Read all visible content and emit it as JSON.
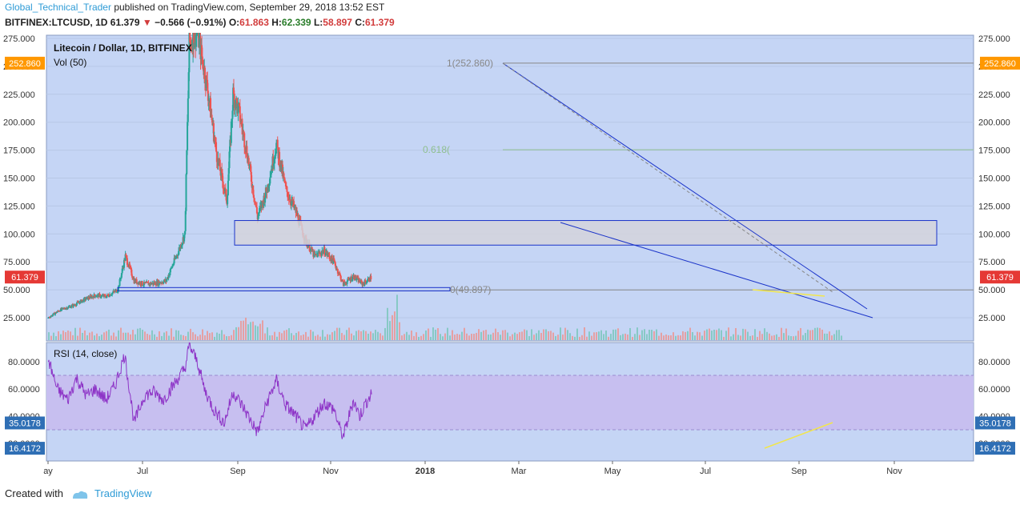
{
  "header": {
    "author": "Global_Technical_Trader",
    "published": "published on TradingView.com, September 29, 2018 13:52 EST",
    "symbol": "BITFINEX:LTCUSD, 1D",
    "last": "61.379",
    "arrow": "▼",
    "change": "−0.566 (−0.91%)",
    "o_label": "O:",
    "o_value": "61.863",
    "h_label": "H:",
    "h_value": "62.339",
    "l_label": "L:",
    "l_value": "58.897",
    "c_label": "C:",
    "c_value": "61.379"
  },
  "footer": {
    "created_with": "Created with",
    "brand": "TradingView"
  },
  "colors": {
    "bull": "#26a69a",
    "bear": "#ef5350",
    "pane_bg": "#c5d5f5",
    "rsi_band": "#c7bff0",
    "rsi_line": "#8e35c7",
    "trend": "#1a33c9",
    "label_orange": "#ff9800",
    "label_red": "#e53935",
    "label_blue": "#2f6fb5"
  },
  "chart_data": [
    {
      "type": "candlestick",
      "title": "Litecoin / Dollar, 1D, BITFINEX",
      "subtitle": "Vol (50)",
      "ylim": [
        0,
        280
      ],
      "yticks": [
        "275.000",
        "250.000",
        "225.000",
        "200.000",
        "175.000",
        "150.000",
        "125.000",
        "100.000",
        "75.000",
        "50.000",
        "25.000"
      ],
      "price_labels": {
        "high": "252.860",
        "last": "61.379"
      },
      "fib_levels": [
        {
          "label": "1(252.860)",
          "value": 252.86
        },
        {
          "label": "0.618(",
          "value": 175.33
        },
        {
          "label": "0(49.897)",
          "value": 49.897
        }
      ],
      "resistance_zone": [
        90,
        112
      ],
      "support_zone": [
        49,
        52
      ],
      "monthly_closes": [
        {
          "date": "2017-05-01",
          "close": 25
        },
        {
          "date": "2017-05-20",
          "close": 32
        },
        {
          "date": "2017-06-10",
          "close": 36
        },
        {
          "date": "2017-06-30",
          "close": 42
        },
        {
          "date": "2017-07-15",
          "close": 45
        },
        {
          "date": "2017-08-01",
          "close": 44
        },
        {
          "date": "2017-08-20",
          "close": 50
        },
        {
          "date": "2017-09-01",
          "close": 80
        },
        {
          "date": "2017-09-15",
          "close": 58
        },
        {
          "date": "2017-10-01",
          "close": 55
        },
        {
          "date": "2017-10-20",
          "close": 56
        },
        {
          "date": "2017-11-05",
          "close": 58
        },
        {
          "date": "2017-11-25",
          "close": 85
        },
        {
          "date": "2017-12-05",
          "close": 100
        },
        {
          "date": "2017-12-12",
          "close": 270
        },
        {
          "date": "2017-12-25",
          "close": 280
        },
        {
          "date": "2018-01-10",
          "close": 230
        },
        {
          "date": "2018-01-25",
          "close": 170
        },
        {
          "date": "2018-02-10",
          "close": 130
        },
        {
          "date": "2018-02-20",
          "close": 225
        },
        {
          "date": "2018-03-01",
          "close": 210
        },
        {
          "date": "2018-03-15",
          "close": 170
        },
        {
          "date": "2018-03-31",
          "close": 115
        },
        {
          "date": "2018-04-15",
          "close": 140
        },
        {
          "date": "2018-04-30",
          "close": 180
        },
        {
          "date": "2018-05-15",
          "close": 140
        },
        {
          "date": "2018-05-31",
          "close": 120
        },
        {
          "date": "2018-06-15",
          "close": 95
        },
        {
          "date": "2018-06-30",
          "close": 80
        },
        {
          "date": "2018-07-15",
          "close": 85
        },
        {
          "date": "2018-07-31",
          "close": 75
        },
        {
          "date": "2018-08-15",
          "close": 55
        },
        {
          "date": "2018-08-31",
          "close": 62
        },
        {
          "date": "2018-09-15",
          "close": 55
        },
        {
          "date": "2018-09-29",
          "close": 61.379
        }
      ]
    },
    {
      "type": "line",
      "title": "RSI (14, close)",
      "ylim": [
        10,
        95
      ],
      "yticks": [
        "80.0000",
        "60.0000",
        "40.0000",
        "20.0000"
      ],
      "band": [
        30,
        70
      ],
      "value_labels": [
        "35.0178",
        "16.4172"
      ],
      "x_axis": [
        "ay",
        "Jul",
        "Sep",
        "Nov",
        "2018",
        "Mar",
        "May",
        "Jul",
        "Sep",
        "Nov"
      ],
      "series": [
        {
          "values": [
            {
              "date": "2017-05-01",
              "rsi": 82
            },
            {
              "date": "2017-05-15",
              "rsi": 60
            },
            {
              "date": "2017-06-01",
              "rsi": 52
            },
            {
              "date": "2017-06-15",
              "rsi": 68
            },
            {
              "date": "2017-07-01",
              "rsi": 55
            },
            {
              "date": "2017-07-15",
              "rsi": 60
            },
            {
              "date": "2017-08-01",
              "rsi": 52
            },
            {
              "date": "2017-08-15",
              "rsi": 62
            },
            {
              "date": "2017-08-31",
              "rsi": 85
            },
            {
              "date": "2017-09-15",
              "rsi": 35
            },
            {
              "date": "2017-10-01",
              "rsi": 55
            },
            {
              "date": "2017-10-15",
              "rsi": 58
            },
            {
              "date": "2017-11-01",
              "rsi": 52
            },
            {
              "date": "2017-11-20",
              "rsi": 65
            },
            {
              "date": "2017-12-05",
              "rsi": 75
            },
            {
              "date": "2017-12-12",
              "rsi": 92
            },
            {
              "date": "2017-12-25",
              "rsi": 80
            },
            {
              "date": "2018-01-05",
              "rsi": 60
            },
            {
              "date": "2018-01-20",
              "rsi": 45
            },
            {
              "date": "2018-02-06",
              "rsi": 35
            },
            {
              "date": "2018-02-20",
              "rsi": 58
            },
            {
              "date": "2018-03-10",
              "rsi": 45
            },
            {
              "date": "2018-03-31",
              "rsi": 28
            },
            {
              "date": "2018-04-15",
              "rsi": 50
            },
            {
              "date": "2018-04-30",
              "rsi": 66
            },
            {
              "date": "2018-05-15",
              "rsi": 48
            },
            {
              "date": "2018-05-31",
              "rsi": 40
            },
            {
              "date": "2018-06-15",
              "rsi": 30
            },
            {
              "date": "2018-06-30",
              "rsi": 40
            },
            {
              "date": "2018-07-15",
              "rsi": 50
            },
            {
              "date": "2018-07-31",
              "rsi": 45
            },
            {
              "date": "2018-08-10",
              "rsi": 30
            },
            {
              "date": "2018-08-15",
              "rsi": 25
            },
            {
              "date": "2018-08-31",
              "rsi": 52
            },
            {
              "date": "2018-09-10",
              "rsi": 40
            },
            {
              "date": "2018-09-20",
              "rsi": 50
            },
            {
              "date": "2018-09-29",
              "rsi": 56
            }
          ]
        }
      ]
    }
  ]
}
